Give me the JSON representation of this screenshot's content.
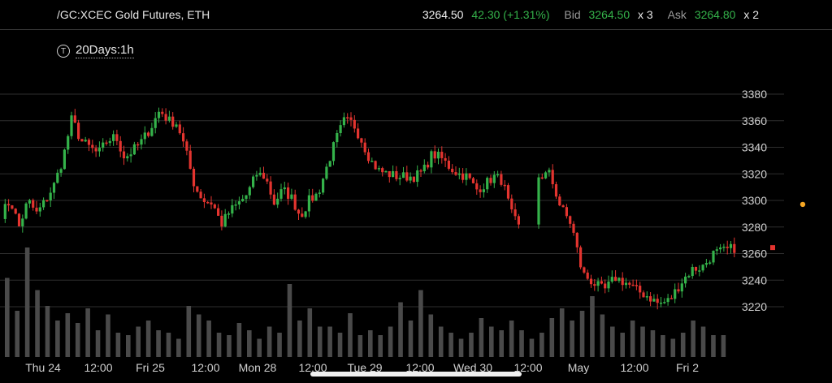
{
  "header": {
    "symbol": "/GC:XCEC Gold Futures, ETH",
    "last_price": "3264.50",
    "change": "42.30 (+1.31%)",
    "bid_label": "Bid",
    "bid_value": "3264.50",
    "bid_size": "x 3",
    "ask_label": "Ask",
    "ask_value": "3264.80",
    "ask_size": "x 2"
  },
  "study": {
    "icon": "T",
    "label": "20Days:1h"
  },
  "colors": {
    "up": "#34b24a",
    "down": "#e3342f",
    "volume": "#4a4a4a",
    "grid": "#2e2e2e"
  },
  "chart_data": {
    "type": "candlestick",
    "y_ticks": [
      3220,
      3240,
      3260,
      3280,
      3300,
      3320,
      3340,
      3360,
      3380
    ],
    "ylim": [
      3200,
      3390
    ],
    "x_tick_labels": [
      "Thu 24",
      "12:00",
      "Fri 25",
      "12:00",
      "Mon 28",
      "12:00",
      "Tue 29",
      "12:00",
      "Wed 30",
      "12:00",
      "May",
      "12:00",
      "Fri 2"
    ],
    "price_segments": [
      [
        3290,
        3300,
        3280,
        3300,
        3290,
        3300,
        3312,
        3332,
        3362,
        3345,
        3340,
        3335,
        3345,
        3348,
        3332,
        3338,
        3345,
        3355,
        3368,
        3360,
        3358,
        3336,
        3310,
        3300,
        3298,
        3282,
        3292,
        3298,
        3305,
        3320,
        3318,
        3298,
        3308,
        3302,
        3288,
        3300,
        3305,
        3325,
        3345,
        3360,
        3358,
        3345,
        3330,
        3322,
        3320,
        3318,
        3318,
        3318,
        3322,
        3335,
        3332,
        3325,
        3320,
        3318,
        3308,
        3312,
        3318,
        3315,
        3290,
        3278
      ],
      [
        3318,
        3320,
        3295,
        3282,
        3245,
        3238,
        3232,
        3242,
        3238,
        3232,
        3228,
        3222,
        3225,
        3238,
        3248,
        3250,
        3260,
        3262,
        3264.5
      ]
    ],
    "last_price": 3264.5,
    "volume_relative": [
      0.65,
      0.38,
      0.9,
      0.55,
      0.42,
      0.3,
      0.36,
      0.28,
      0.4,
      0.22,
      0.35,
      0.2,
      0.18,
      0.25,
      0.3,
      0.22,
      0.2,
      0.15,
      0.42,
      0.35,
      0.3,
      0.2,
      0.18,
      0.28,
      0.22,
      0.15,
      0.25,
      0.2,
      0.6,
      0.3,
      0.4,
      0.25,
      0.25,
      0.2,
      0.36,
      0.18,
      0.22,
      0.18,
      0.25,
      0.45,
      0.3,
      0.55,
      0.35,
      0.25,
      0.2,
      0.15,
      0.2,
      0.32,
      0.25,
      0.22,
      0.3,
      0.22,
      0.15,
      0.2,
      0.32,
      0.4,
      0.3,
      0.38,
      0.5,
      0.35,
      0.25,
      0.2,
      0.3,
      0.25,
      0.22,
      0.18,
      0.15,
      0.2,
      0.3,
      0.25,
      0.18,
      0.18
    ]
  }
}
